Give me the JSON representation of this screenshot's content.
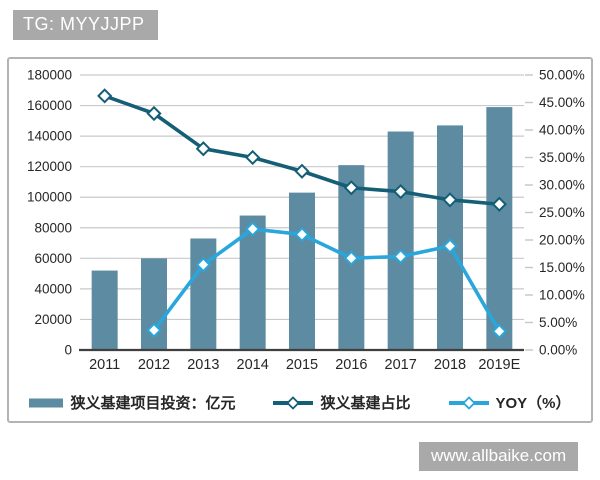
{
  "top_badge": {
    "text": "TG: MYYJJPP"
  },
  "bottom_watermark": {
    "text": "www.allbaike.com"
  },
  "colors": {
    "bar": "#5d8ba1",
    "ratio_line": "#145e76",
    "yoy_line": "#29a7dc",
    "grid": "#c9c9c9",
    "axis_line": "#3f3f3f",
    "tick_text": "#262626",
    "badge_bg": "#a9a9a9",
    "badge_text": "#ffffff",
    "panel_border": "#b3b3b3",
    "marker_fill": "#ffffff"
  },
  "chart_data": {
    "type": "bar",
    "subtype": "combo column + two lines, dual y-axis, diamond markers",
    "title": "",
    "categories": [
      "2011",
      "2012",
      "2013",
      "2014",
      "2015",
      "2016",
      "2017",
      "2018",
      "2019E"
    ],
    "series": [
      {
        "name": "狭义基建项目投资：亿元",
        "type": "bar",
        "axis": "left",
        "values": [
          52000,
          60000,
          73000,
          88000,
          103000,
          121000,
          143000,
          147000,
          159000
        ]
      },
      {
        "name": "狭义基建占比",
        "type": "line",
        "marker": "diamond",
        "axis": "right",
        "values_percent": [
          46.2,
          43.0,
          36.6,
          35.0,
          32.5,
          29.5,
          28.8,
          27.3,
          26.5
        ]
      },
      {
        "name": "YOY（%）",
        "type": "line",
        "marker": "diamond",
        "axis": "right",
        "values_percent": [
          null,
          3.6,
          15.5,
          22.0,
          21.0,
          16.7,
          17.0,
          18.9,
          3.4
        ]
      }
    ],
    "left_axis": {
      "min": 0,
      "max": 180000,
      "tick_values": [
        0,
        20000,
        40000,
        60000,
        80000,
        100000,
        120000,
        140000,
        160000,
        180000
      ],
      "tick_labels": [
        "0",
        "20000",
        "40000",
        "60000",
        "80000",
        "100000",
        "120000",
        "140000",
        "160000",
        "180000"
      ]
    },
    "right_axis": {
      "min": 0,
      "max": 50,
      "tick_values": [
        0,
        5,
        10,
        15,
        20,
        25,
        30,
        35,
        40,
        45,
        50
      ],
      "tick_labels": [
        "0.00%",
        "5.00%",
        "10.00%",
        "15.00%",
        "20.00%",
        "25.00%",
        "30.00%",
        "35.00%",
        "40.00%",
        "45.00%",
        "50.00%"
      ]
    },
    "grid": true,
    "legend_position": "bottom"
  }
}
